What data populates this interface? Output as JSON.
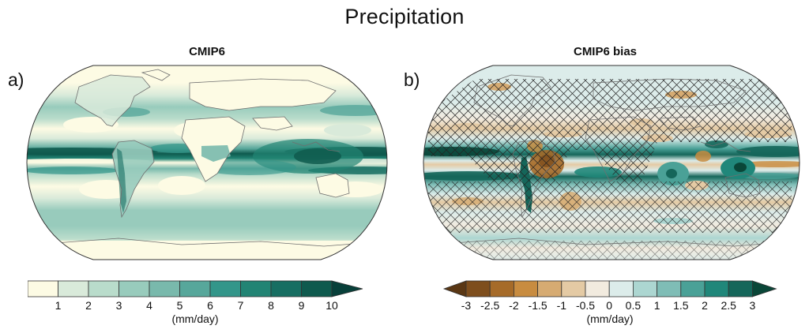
{
  "figure": {
    "title": "Precipitation"
  },
  "panels": [
    {
      "label": "a)",
      "title": "CMIP6",
      "colorbar": {
        "ticks": [
          "1",
          "2",
          "3",
          "4",
          "5",
          "6",
          "7",
          "8",
          "9",
          "10"
        ],
        "unit": "(mm/day)",
        "colors": [
          "#fdfbe4",
          "#d9eada",
          "#b9dccb",
          "#98cbbc",
          "#79b9ac",
          "#57a79b",
          "#33968a",
          "#228474",
          "#176e62",
          "#0f5a4e",
          "#08403a"
        ]
      }
    },
    {
      "label": "b)",
      "title": "CMIP6 bias",
      "colorbar": {
        "ticks": [
          "-3",
          "-2.5",
          "-2",
          "-1.5",
          "-1",
          "-0.5",
          "0",
          "0.5",
          "1",
          "1.5",
          "2",
          "2.5",
          "3"
        ],
        "unit": "(mm/day)",
        "colors": [
          "#5a3714",
          "#7e4e1d",
          "#a66b29",
          "#c88c40",
          "#d6ab72",
          "#e4caa4",
          "#f2ebdf",
          "#dcecea",
          "#acd6d1",
          "#7fbdb6",
          "#4aa197",
          "#20877a",
          "#15665a",
          "#0a4638"
        ]
      }
    }
  ],
  "chart_data": [
    {
      "type": "heatmap",
      "title": "CMIP6",
      "subtitle": "Precipitation",
      "panel_label": "a)",
      "projection": "Robinson (global map)",
      "variable": "Precipitation",
      "unit": "mm/day",
      "colorbar": {
        "levels": [
          1,
          2,
          3,
          4,
          5,
          6,
          7,
          8,
          9,
          10
        ],
        "extend": "max",
        "range": [
          0,
          10
        ]
      },
      "features": [
        {
          "region": "ITCZ (tropical Pacific/Indian/Atlantic)",
          "approx_value": "8-10+"
        },
        {
          "region": "Maritime Continent / western Pacific warm pool",
          "approx_value": "9-10+"
        },
        {
          "region": "Subtropical oceans (dry zones)",
          "approx_value": "0-1"
        },
        {
          "region": "Sahara / Arabia / central Asia",
          "approx_value": "0-1"
        },
        {
          "region": "Mid-latitude storm tracks",
          "approx_value": "3-5"
        },
        {
          "region": "Polar regions",
          "approx_value": "0-1"
        }
      ]
    },
    {
      "type": "heatmap",
      "title": "CMIP6 bias",
      "subtitle": "Precipitation",
      "panel_label": "b)",
      "projection": "Robinson (global map)",
      "variable": "Precipitation bias",
      "unit": "mm/day",
      "colorbar": {
        "levels": [
          -3,
          -2.5,
          -2,
          -1.5,
          -1,
          -0.5,
          0,
          0.5,
          1,
          1.5,
          2,
          2.5,
          3
        ],
        "extend": "both",
        "range": [
          -3,
          3
        ]
      },
      "hatching": "cross-hatching over regions with low model agreement/significance",
      "features": [
        {
          "region": "Tropical Pacific double-ITCZ south of equator",
          "approx_value": "+2 to +3"
        },
        {
          "region": "Equatorial Pacific cold tongue",
          "approx_value": "-1 to -2"
        },
        {
          "region": "Amazon / northern South America",
          "approx_value": "-1.5 to -3"
        },
        {
          "region": "Andes",
          "approx_value": "+2 to +3"
        },
        {
          "region": "East Africa / western Indian Ocean",
          "approx_value": "+1.5 to +2.5"
        },
        {
          "region": "Maritime Continent",
          "approx_value": "+2 to +3"
        },
        {
          "region": "Himalaya / Tibetan Plateau edge",
          "approx_value": "+2 to +3"
        },
        {
          "region": "India",
          "approx_value": "-1 to -1.5"
        }
      ]
    }
  ]
}
